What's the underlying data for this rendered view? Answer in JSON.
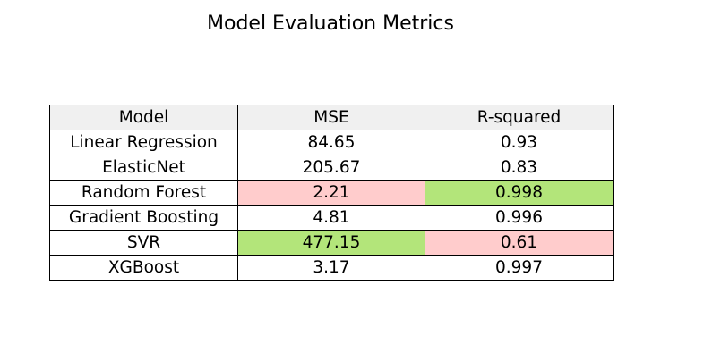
{
  "title": "Model Evaluation Metrics",
  "chart_data": {
    "type": "table",
    "title": "Model Evaluation Metrics",
    "columns": [
      "Model",
      "MSE",
      "R-squared"
    ],
    "rows": [
      [
        "Linear Regression",
        "84.65",
        "0.93"
      ],
      [
        "ElasticNet",
        "205.67",
        "0.83"
      ],
      [
        "Random Forest",
        "2.21",
        "0.998"
      ],
      [
        "Gradient Boosting",
        "4.81",
        "0.996"
      ],
      [
        "SVR",
        "477.15",
        "0.61"
      ],
      [
        "XGBoost",
        "3.17",
        "0.997"
      ]
    ],
    "header_color": "#f0f0f0",
    "highlight_colors": {
      "green": "#b3e57a",
      "red": "#ffcccc"
    },
    "highlights": [
      {
        "row": 2,
        "col": 1,
        "color": "red"
      },
      {
        "row": 2,
        "col": 2,
        "color": "green"
      },
      {
        "row": 4,
        "col": 1,
        "color": "green"
      },
      {
        "row": 4,
        "col": 2,
        "color": "red"
      }
    ]
  }
}
